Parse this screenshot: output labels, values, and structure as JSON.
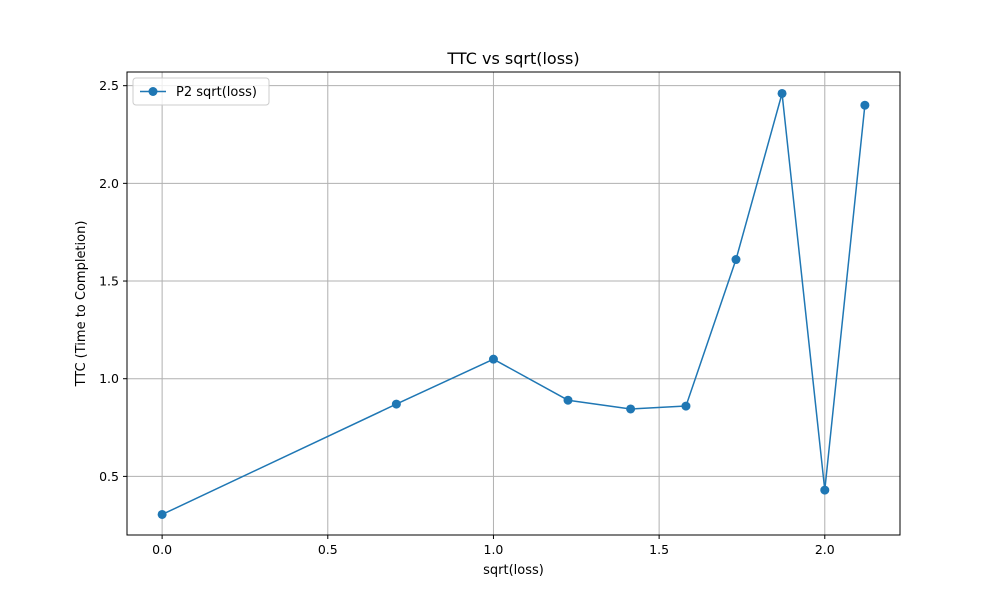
{
  "chart_data": {
    "type": "line",
    "title": "TTC vs sqrt(loss)",
    "xlabel": "sqrt(loss)",
    "ylabel": "TTC (Time to Completion)",
    "xlim": [
      -0.106,
      2.227
    ],
    "ylim": [
      0.2,
      2.57
    ],
    "xticks": [
      0.0,
      0.5,
      1.0,
      1.5,
      2.0
    ],
    "xtick_labels": [
      "0.0",
      "0.5",
      "1.0",
      "1.5",
      "2.0"
    ],
    "yticks": [
      0.5,
      1.0,
      1.5,
      2.0,
      2.5
    ],
    "ytick_labels": [
      "0.5",
      "1.0",
      "1.5",
      "2.0",
      "2.5"
    ],
    "grid": true,
    "legend_position": "top-left",
    "series": [
      {
        "name": "P2 sqrt(loss)",
        "color": "#1f77b4",
        "marker": "circle",
        "x": [
          0.0,
          0.707,
          1.0,
          1.225,
          1.414,
          1.581,
          1.732,
          1.871,
          2.0,
          2.121
        ],
        "y": [
          0.305,
          0.87,
          1.1,
          0.89,
          0.845,
          0.86,
          1.61,
          2.46,
          0.43,
          2.4
        ]
      }
    ]
  }
}
